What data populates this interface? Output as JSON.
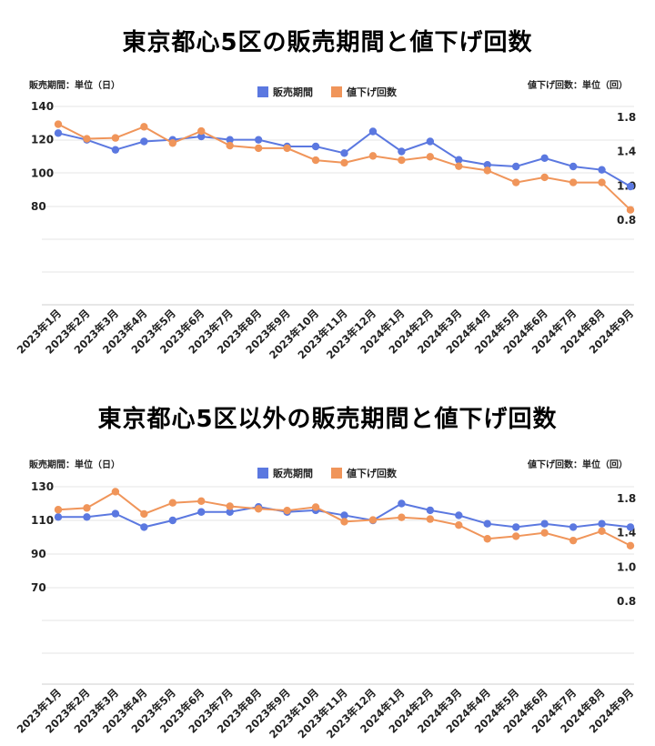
{
  "chart_data": [
    {
      "type": "line",
      "title": "東京都心5区の販売期間と値下げ回数",
      "left_axis_label": "販売期間：単位（日）",
      "right_axis_label": "値下げ回数：単位（回）",
      "categories": [
        "2023年1月",
        "2023年2月",
        "2023年3月",
        "2023年4月",
        "2023年5月",
        "2023年6月",
        "2023年7月",
        "2023年8月",
        "2023年9月",
        "2023年10月",
        "2023年11月",
        "2023年12月",
        "2024年1月",
        "2024年2月",
        "2024年3月",
        "2024年4月",
        "2024年5月",
        "2024年6月",
        "2024年7月",
        "2024年8月",
        "2024年9月"
      ],
      "left_ticks": [
        "140",
        "120",
        "100",
        "80"
      ],
      "right_ticks": [
        "1.8",
        "1.4",
        "1.0",
        "0.8"
      ],
      "series": [
        {
          "name": "販売期間",
          "axis": "left",
          "color": "#5b78e0",
          "values": [
            124,
            120,
            114,
            119,
            120,
            122,
            120,
            120,
            116,
            116,
            112,
            125,
            113,
            119,
            108,
            105,
            104,
            109,
            104,
            102,
            92
          ]
        },
        {
          "name": "値下げ回数",
          "axis": "right",
          "color": "#f0955a",
          "values": [
            1.72,
            1.55,
            1.56,
            1.69,
            1.5,
            1.64,
            1.47,
            1.44,
            1.44,
            1.3,
            1.27,
            1.35,
            1.3,
            1.34,
            1.23,
            1.18,
            1.04,
            1.1,
            1.04,
            1.04,
            0.86
          ]
        }
      ]
    },
    {
      "type": "line",
      "title": "東京都心5区以外の販売期間と値下げ回数",
      "left_axis_label": "販売期間：単位（日）",
      "right_axis_label": "値下げ回数：単位（回）",
      "categories": [
        "2023年1月",
        "2023年2月",
        "2023年3月",
        "2023年4月",
        "2023年5月",
        "2023年6月",
        "2023年7月",
        "2023年8月",
        "2023年9月",
        "2023年10月",
        "2023年11月",
        "2023年12月",
        "2024年1月",
        "2024年2月",
        "2024年3月",
        "2024年4月",
        "2024年5月",
        "2024年6月",
        "2024年7月",
        "2024年8月",
        "2024年9月"
      ],
      "left_ticks": [
        "130",
        "110",
        "90",
        "70"
      ],
      "right_ticks": [
        "1.8",
        "1.4",
        "1.0",
        "0.8"
      ],
      "series": [
        {
          "name": "販売期間",
          "axis": "left",
          "color": "#5b78e0",
          "values": [
            112,
            112,
            114,
            106,
            110,
            115,
            115,
            118,
            115,
            116,
            113,
            110,
            120,
            116,
            113,
            108,
            106,
            108,
            106,
            108,
            106
          ]
        },
        {
          "name": "値下げ回数",
          "axis": "right",
          "color": "#f0955a",
          "values": [
            1.67,
            1.69,
            1.88,
            1.62,
            1.75,
            1.77,
            1.71,
            1.68,
            1.66,
            1.7,
            1.53,
            1.55,
            1.58,
            1.56,
            1.49,
            1.33,
            1.36,
            1.4,
            1.31,
            1.42,
            1.25
          ]
        }
      ]
    }
  ]
}
